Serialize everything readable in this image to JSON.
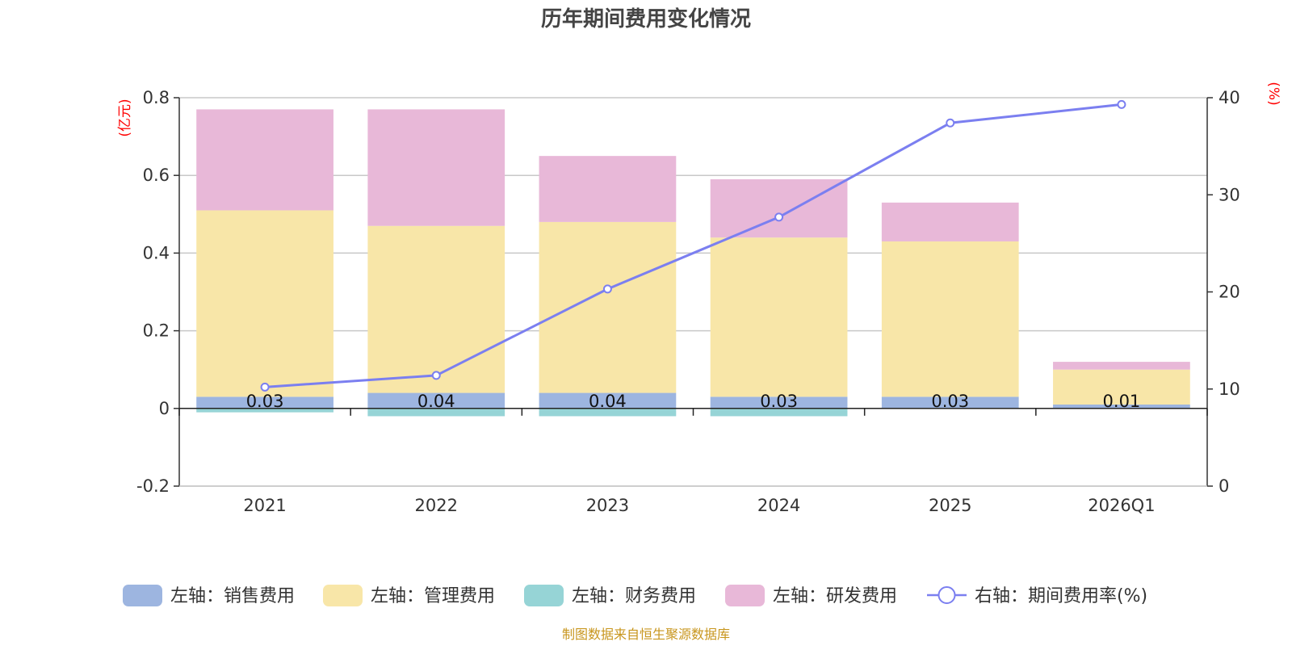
{
  "chart_data": {
    "type": "bar+line",
    "title": "历年期间费用变化情况",
    "categories": [
      "2021",
      "2022",
      "2023",
      "2024",
      "2025",
      "2026Q1"
    ],
    "left_axis": {
      "unit": "(亿元)",
      "ylim": [
        -0.2,
        0.8
      ],
      "ticks": [
        "-0.2",
        "0",
        "0.2",
        "0.4",
        "0.6",
        "0.8"
      ]
    },
    "right_axis": {
      "unit": "(%)",
      "ylim": [
        0,
        40
      ],
      "ticks": [
        "0",
        "10",
        "20",
        "30",
        "40"
      ]
    },
    "series": [
      {
        "name": "左轴：销售费用",
        "axis": "left",
        "type": "bar",
        "color": "#9db5e0",
        "values": [
          0.03,
          0.04,
          0.04,
          0.03,
          0.03,
          0.01
        ],
        "labels": [
          "0.03",
          "0.04",
          "0.04",
          "0.03",
          "0.03",
          "0.01"
        ]
      },
      {
        "name": "左轴：管理费用",
        "axis": "left",
        "type": "bar",
        "color": "#f8e6a8",
        "values": [
          0.48,
          0.43,
          0.44,
          0.41,
          0.4,
          0.09
        ]
      },
      {
        "name": "左轴：财务费用",
        "axis": "left",
        "type": "bar",
        "color": "#96d4d6",
        "values": [
          -0.01,
          -0.02,
          -0.02,
          -0.02,
          0.0,
          0.0
        ]
      },
      {
        "name": "左轴：研发费用",
        "axis": "left",
        "type": "bar",
        "color": "#e8b8d8",
        "values": [
          0.26,
          0.3,
          0.17,
          0.15,
          0.1,
          0.02
        ]
      },
      {
        "name": "右轴：期间费用率(%)",
        "axis": "right",
        "type": "line",
        "color": "#7b7ff0",
        "values": [
          10.2,
          11.4,
          20.3,
          27.7,
          37.4,
          39.3
        ]
      }
    ],
    "source": "制图数据来自恒生聚源数据库"
  }
}
